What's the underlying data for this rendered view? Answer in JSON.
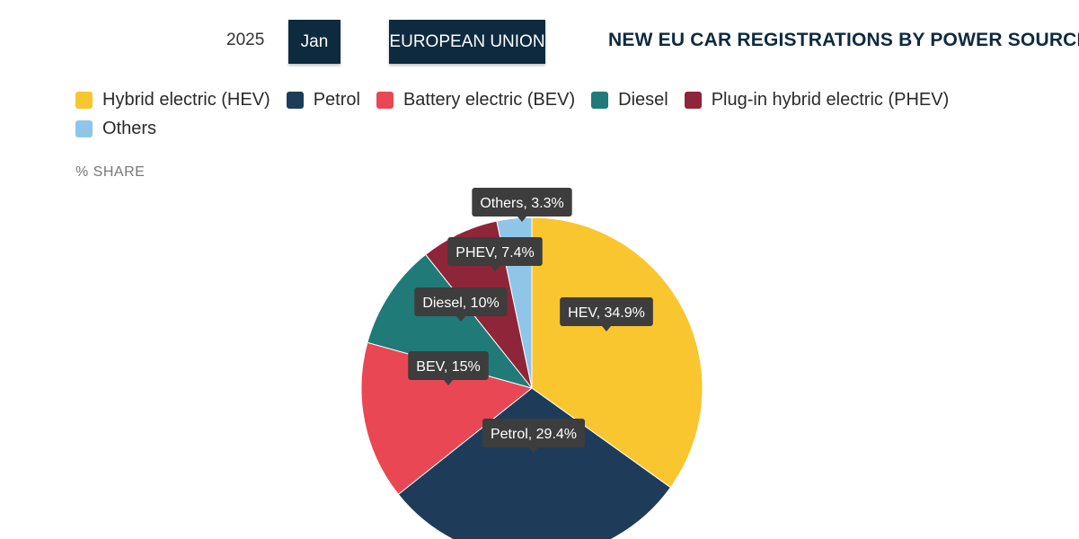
{
  "controls": {
    "year": "2025",
    "month": "Jan",
    "region": "EUROPEAN UNION"
  },
  "colors": {
    "control_bg": "#0d2a3f",
    "tooltip_bg": "#3d3d3d"
  },
  "chart_data": {
    "type": "pie",
    "title": "NEW EU CAR REGISTRATIONS BY POWER SOURCE",
    "value_label": "% SHARE",
    "legend_position": "top-left",
    "legend": [
      {
        "name": "Hybrid electric (HEV)",
        "color": "#f9c630"
      },
      {
        "name": "Petrol",
        "color": "#1e3c5a"
      },
      {
        "name": "Battery electric (BEV)",
        "color": "#e94754"
      },
      {
        "name": "Diesel",
        "color": "#1f7a78"
      },
      {
        "name": "Plug-in hybrid electric (PHEV)",
        "color": "#8e2538"
      },
      {
        "name": "Others",
        "color": "#8fc6e8"
      }
    ],
    "slices": [
      {
        "label": "HEV",
        "value": 34.9,
        "display": "34.9%",
        "color": "#f9c630"
      },
      {
        "label": "Petrol",
        "value": 29.4,
        "display": "29.4%",
        "color": "#1e3c5a"
      },
      {
        "label": "BEV",
        "value": 15,
        "display": "15%",
        "color": "#e94754"
      },
      {
        "label": "Diesel",
        "value": 10,
        "display": "10%",
        "color": "#1f7a78"
      },
      {
        "label": "PHEV",
        "value": 7.4,
        "display": "7.4%",
        "color": "#8e2538"
      },
      {
        "label": "Others",
        "value": 3.3,
        "display": "3.3%",
        "color": "#8fc6e8"
      }
    ]
  }
}
